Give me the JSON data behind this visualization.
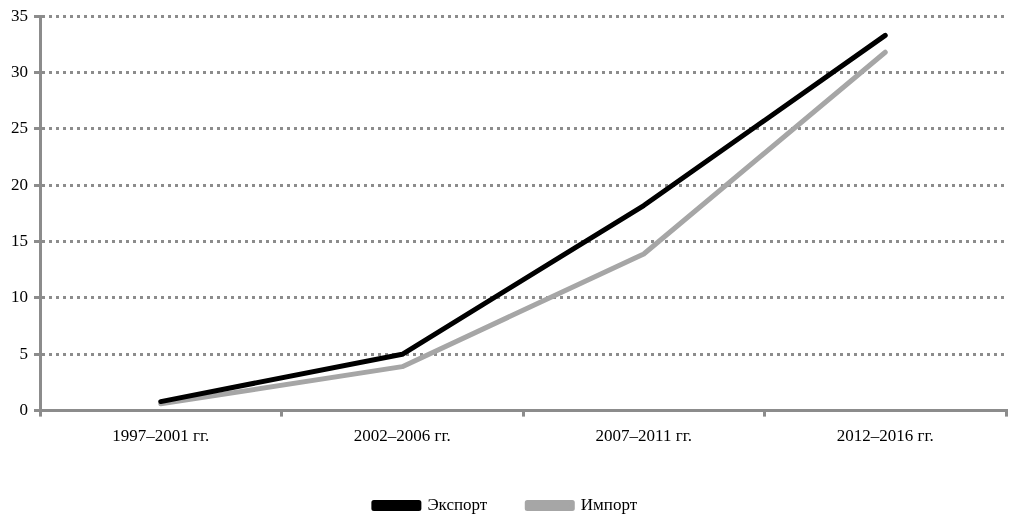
{
  "chart_data": {
    "type": "line",
    "categories": [
      "1997–2001 гг.",
      "2002–2006 гг.",
      "2007–2011 гг.",
      "2012–2016 гг."
    ],
    "series": [
      {
        "name": "Экспорт",
        "color": "#000000",
        "values": [
          0.8,
          5.0,
          18.2,
          33.3
        ]
      },
      {
        "name": "Импорт",
        "color": "#a6a6a6",
        "values": [
          0.6,
          3.9,
          13.9,
          31.8
        ]
      }
    ],
    "ylim": [
      0,
      35
    ],
    "yticks": [
      0,
      5,
      10,
      15,
      20,
      25,
      30,
      35
    ],
    "grid": "y",
    "legend": "bottom",
    "marker": "none",
    "line_style": "solid"
  }
}
